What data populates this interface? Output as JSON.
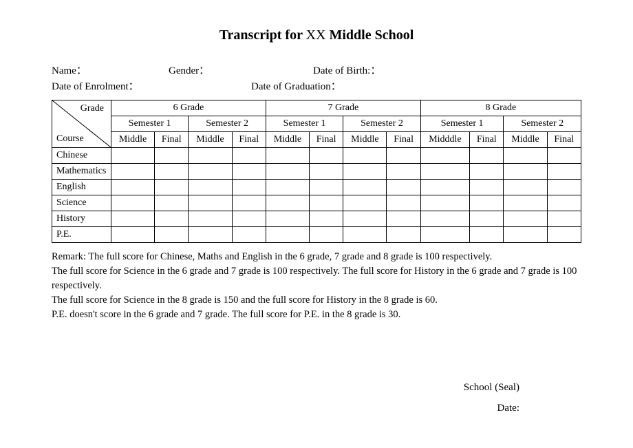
{
  "title": {
    "prefix": "Transcript for ",
    "school_placeholder": "XX",
    "suffix": " Middle School"
  },
  "info": {
    "name_label": "Name：",
    "gender_label": "Gender：",
    "dob_label": "Date of Birth:：",
    "enrol_label": "Date of Enrolment：",
    "grad_label": "Date of Graduation："
  },
  "table": {
    "diag_top": "Grade",
    "diag_bottom": "Course",
    "grades": [
      "6 Grade",
      "7 Grade",
      "8 Grade"
    ],
    "semesters": [
      "Semester 1",
      "Semester 2",
      "Semester 1",
      "Semester 2",
      "Semester 1",
      "Semester 2"
    ],
    "subcols": [
      "Middle",
      "Final",
      "Middle",
      "Final",
      "Middle",
      "Final",
      "Middle",
      "Final",
      "Midddle",
      "Final",
      "Middle",
      "Final"
    ],
    "courses": [
      "Chinese",
      "Mathematics",
      "English",
      "Science",
      "History",
      "P.E."
    ]
  },
  "remarks": [
    "Remark: The full score for Chinese, Maths and English in the 6 grade, 7 grade and 8 grade is 100 respectively.",
    "The full score for Science in the 6 grade and 7 grade is 100 respectively. The full score for History in the 6 grade and 7 grade is 100 respectively.",
    "The full score for Science in the 8 grade is 150 and the full score for History in the 8 grade is 60.",
    "P.E. doesn't score in the 6 grade and 7 grade. The full score for P.E. in the 8 grade is 30."
  ],
  "footer": {
    "seal": "School (Seal)",
    "date": "Date:"
  }
}
